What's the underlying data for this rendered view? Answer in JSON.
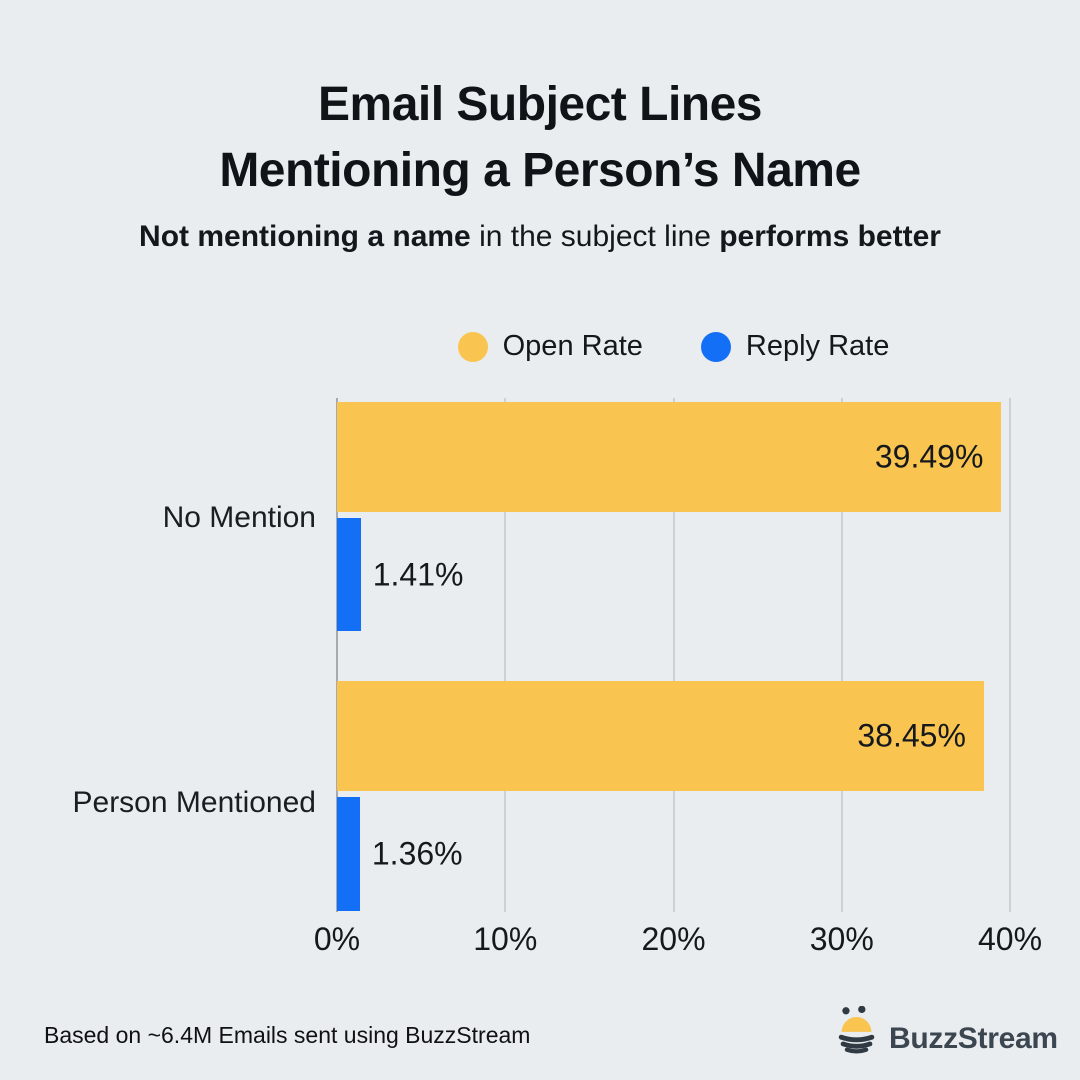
{
  "title": {
    "line1": "Email Subject Lines",
    "line2": "Mentioning a Person’s Name"
  },
  "subtitle": {
    "bold1": "Not mentioning a name",
    "mid": " in the subject line ",
    "bold2": "performs better"
  },
  "legend": [
    {
      "label": "Open Rate",
      "color": "#F9C450"
    },
    {
      "label": "Reply Rate",
      "color": "#146FF7"
    }
  ],
  "chart_data": {
    "type": "bar",
    "orientation": "horizontal",
    "categories": [
      "No Mention",
      "Person Mentioned"
    ],
    "series": [
      {
        "name": "Open Rate",
        "color": "#F9C450",
        "values": [
          39.49,
          38.45
        ],
        "labels": [
          "39.49%",
          "38.45%"
        ],
        "label_position": "inside-end"
      },
      {
        "name": "Reply Rate",
        "color": "#146FF7",
        "values": [
          1.41,
          1.36
        ],
        "labels": [
          "1.41%",
          "1.36%"
        ],
        "label_position": "outside-end"
      }
    ],
    "xlim": [
      0,
      40
    ],
    "xticks": [
      "0%",
      "10%",
      "20%",
      "30%",
      "40%"
    ],
    "grid": true,
    "legend_position": "top-center"
  },
  "footer": {
    "note": "Based on ~6.4M Emails sent using BuzzStream",
    "brand": "BuzzStream"
  },
  "colors": {
    "background": "#E9EDF0",
    "open_rate": "#F9C450",
    "reply_rate": "#146FF7",
    "text": "#14171C",
    "gridline": "#CDD1D5",
    "axis_line": "#A6AAAE",
    "brand_text": "#3C4650",
    "bee_dark": "#2F3A43"
  }
}
